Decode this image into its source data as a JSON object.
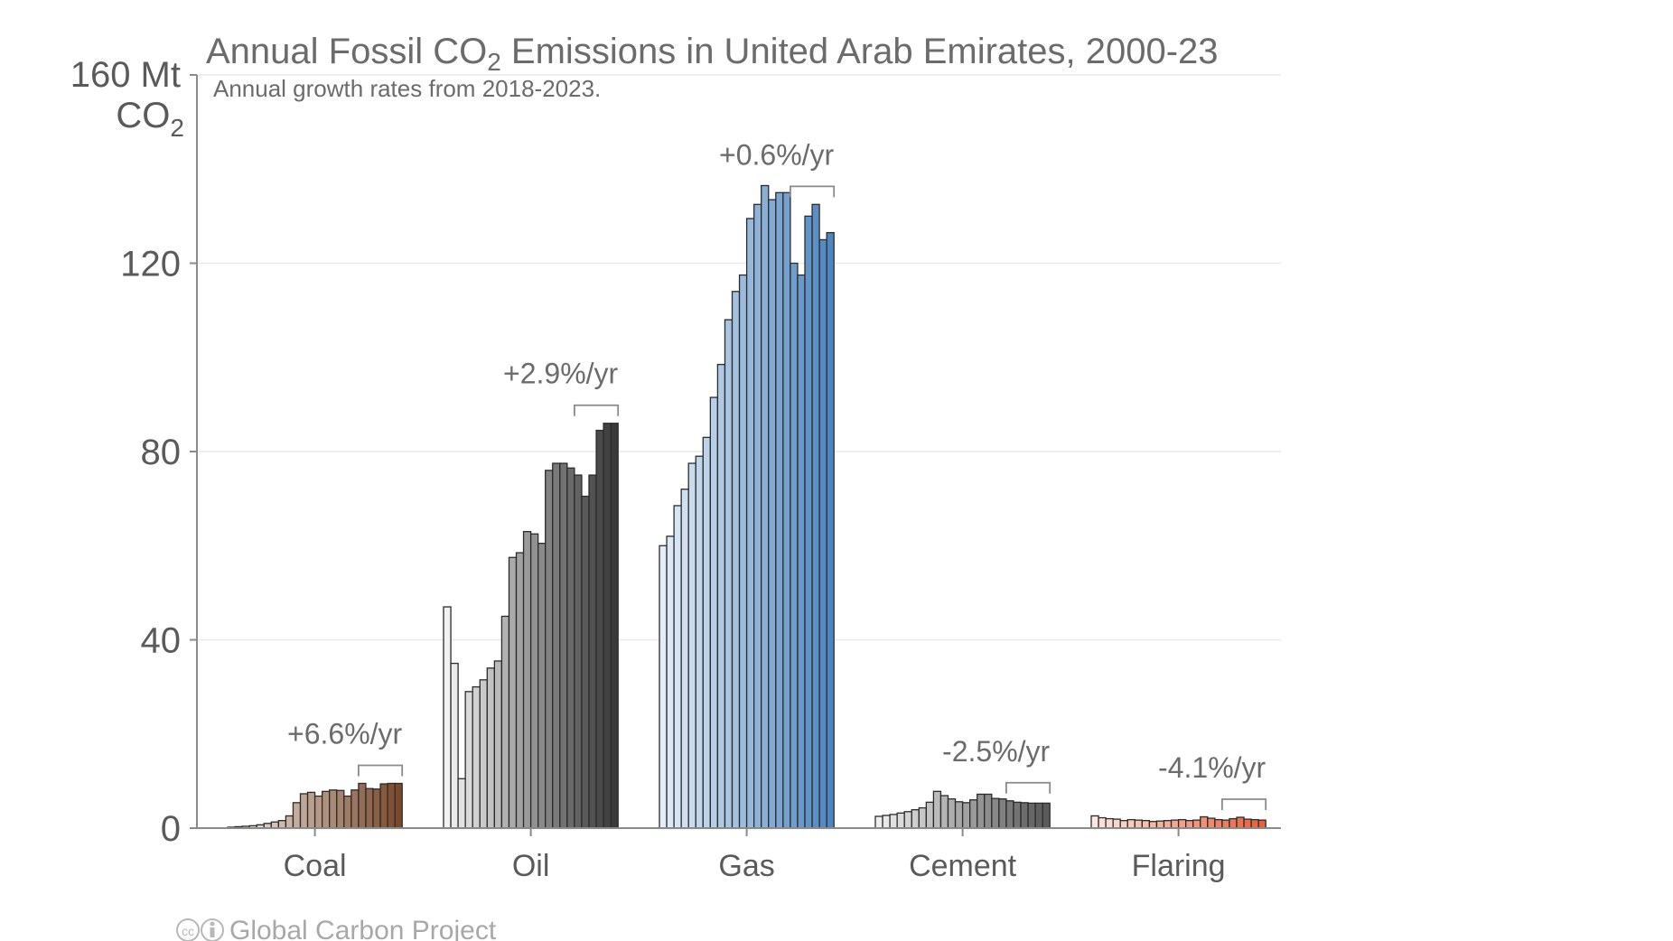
{
  "chart_data": {
    "type": "bar",
    "title_main": "Annual Fossil CO",
    "title_sub2": "2",
    "title_rest": " Emissions in United Arab Emirates, 2000-23",
    "subtitle": "Annual growth rates from 2018-2023.",
    "yunit_line1": "160 Mt",
    "yunit_line2_main": "CO",
    "yunit_line2_sub": "2",
    "ylim": [
      0,
      160
    ],
    "yticks": [
      "0",
      "40",
      "80",
      "120"
    ],
    "years": [
      2000,
      2023
    ],
    "grid": true,
    "credit": "Global Carbon Project",
    "series": [
      {
        "name": "Coal",
        "color_light": "#f4ede7",
        "color_dark": "#7b4a2c",
        "growth": "+6.6%/yr",
        "values": [
          0.2,
          0.3,
          0.4,
          0.5,
          0.7,
          1.0,
          1.3,
          1.6,
          2.6,
          5.4,
          7.3,
          7.6,
          6.8,
          7.8,
          8.1,
          8.0,
          6.8,
          8.1,
          9.5,
          8.4,
          8.3,
          9.4,
          9.5,
          9.5
        ]
      },
      {
        "name": "Oil",
        "color_light": "#f2f2f2",
        "color_dark": "#3a3a3a",
        "growth": "+2.9%/yr",
        "values": [
          47.0,
          35.0,
          10.5,
          29.0,
          30.0,
          31.5,
          34.0,
          35.5,
          45.0,
          57.5,
          58.5,
          63.0,
          62.5,
          60.5,
          76.0,
          77.5,
          77.5,
          76.5,
          75.0,
          70.5,
          75.0,
          84.5,
          86.0,
          86.0
        ]
      },
      {
        "name": "Gas",
        "color_light": "#e3eef8",
        "color_dark": "#4f86c0",
        "growth": "+0.6%/yr",
        "values": [
          60.0,
          62.0,
          68.5,
          72.0,
          77.5,
          79.0,
          83.0,
          91.5,
          98.5,
          108.0,
          114.0,
          117.5,
          129.5,
          132.5,
          136.5,
          133.5,
          135.0,
          135.0,
          120.0,
          117.5,
          130.0,
          132.5,
          125.0,
          126.5
        ]
      },
      {
        "name": "Cement",
        "color_light": "#eeeeee",
        "color_dark": "#5a5a5a",
        "growth": "-2.5%/yr",
        "values": [
          2.5,
          2.7,
          2.9,
          3.2,
          3.5,
          3.9,
          4.3,
          5.5,
          7.8,
          6.9,
          6.2,
          5.6,
          5.4,
          6.0,
          7.2,
          7.2,
          6.3,
          6.2,
          5.8,
          5.5,
          5.4,
          5.3,
          5.3,
          5.3
        ]
      },
      {
        "name": "Flaring",
        "color_light": "#fde6df",
        "color_dark": "#e8603c",
        "growth": "-4.1%/yr",
        "values": [
          2.6,
          2.2,
          2.0,
          1.9,
          1.6,
          1.8,
          1.7,
          1.6,
          1.4,
          1.5,
          1.6,
          1.7,
          1.8,
          1.6,
          1.7,
          2.4,
          2.1,
          1.8,
          1.7,
          2.0,
          2.3,
          1.9,
          1.8,
          1.7
        ]
      }
    ]
  }
}
